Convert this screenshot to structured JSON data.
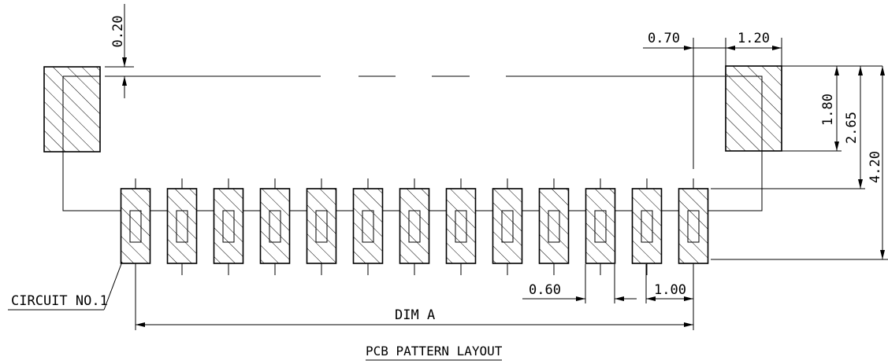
{
  "drawing": {
    "title": "PCB PATTERN LAYOUT",
    "circuit_label": "CIRCUIT NO.1",
    "dim_a_label": "DIM A",
    "dims": {
      "gap_top": "0.20",
      "mount_offset": "0.70",
      "mount_width": "1.20",
      "mount_height": "1.80",
      "to_contact_top": "2.65",
      "overall_height": "4.20",
      "contact_width": "0.60",
      "pitch": "1.00"
    },
    "contact_pad_count": 13
  }
}
